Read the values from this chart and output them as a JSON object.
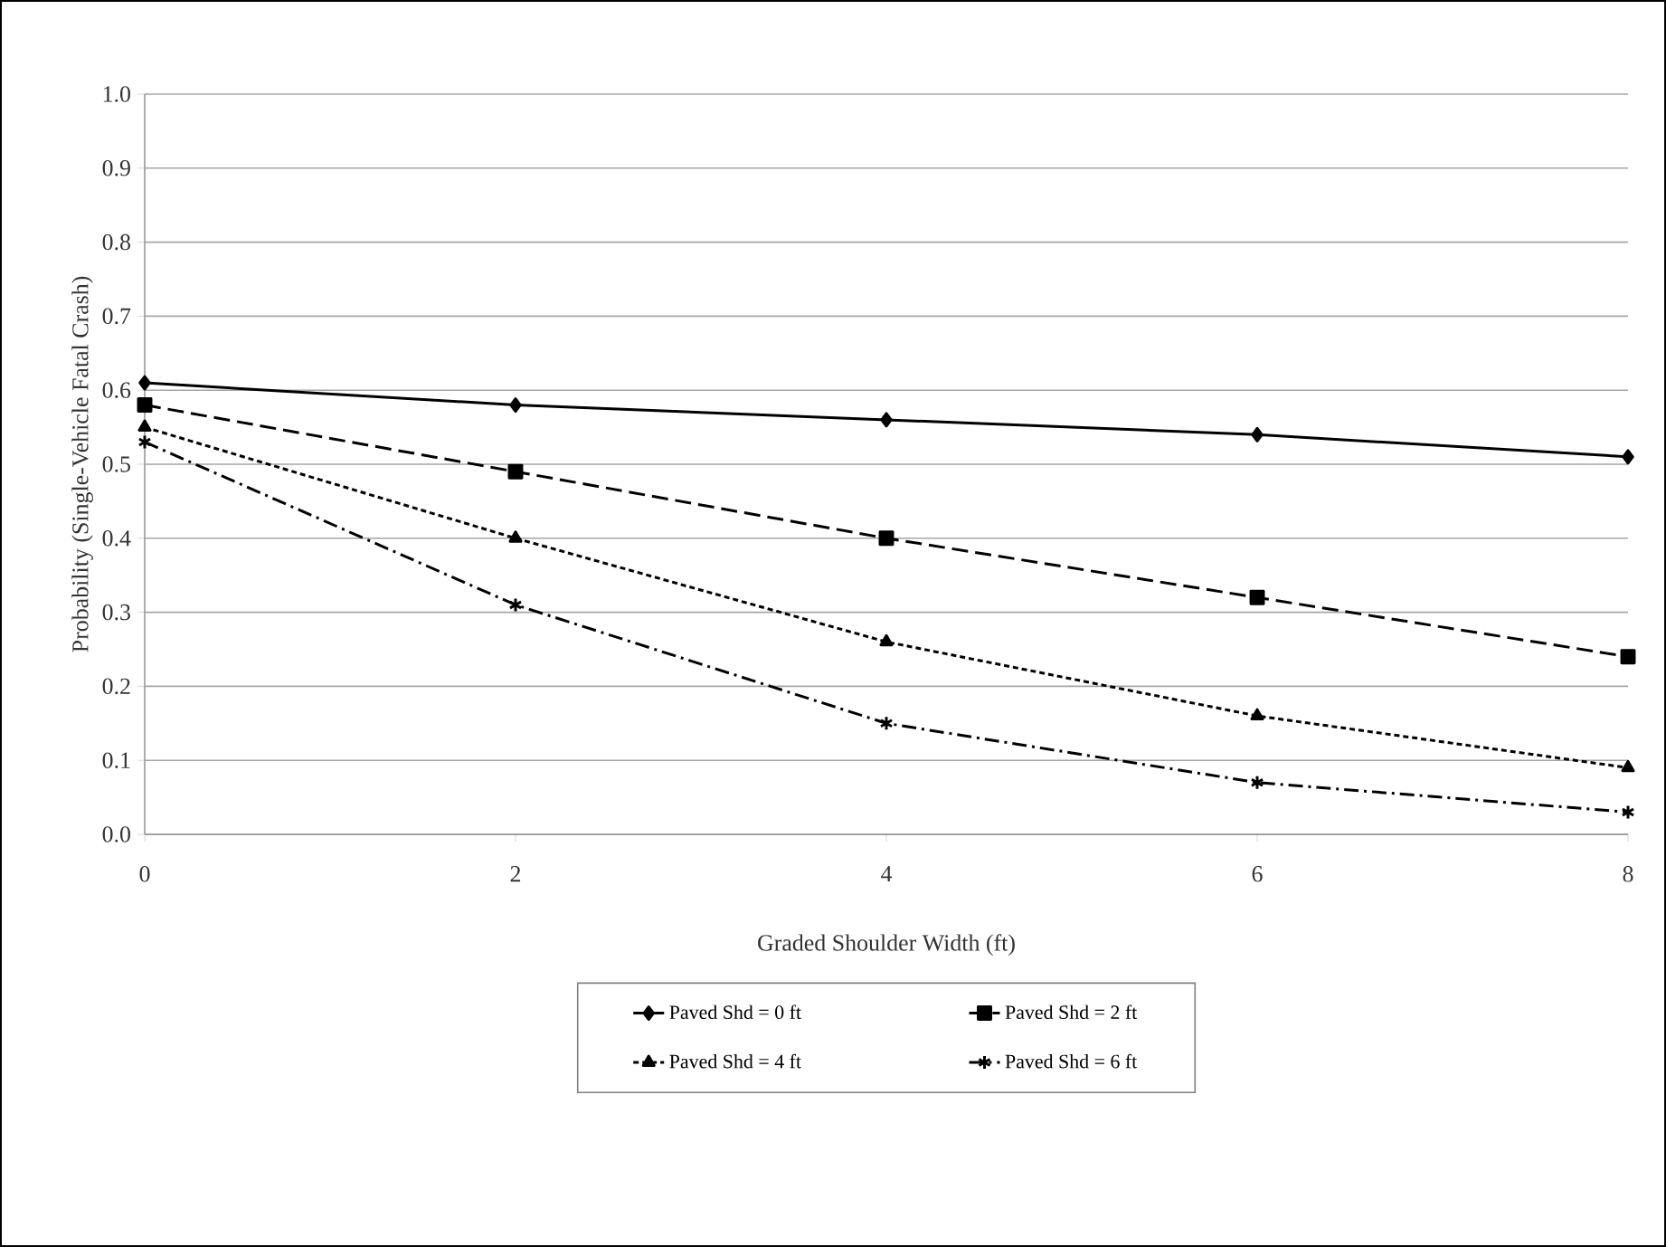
{
  "chart_data": {
    "type": "line",
    "xlabel": "Graded Shoulder Width (ft)",
    "ylabel": "Probability (Single-Vehicle Fatal Crash)",
    "x": [
      0,
      2,
      4,
      6,
      8
    ],
    "xlim": [
      0,
      8
    ],
    "xticks": [
      0,
      2,
      4,
      6,
      8
    ],
    "ylim": [
      0,
      1
    ],
    "yticks": [
      {
        "value": 0,
        "label": "0.0"
      },
      {
        "value": 0.1,
        "label": "0.1"
      },
      {
        "value": 0.2,
        "label": "0.2"
      },
      {
        "value": 0.3,
        "label": "0.3"
      },
      {
        "value": 0.4,
        "label": "0.4"
      },
      {
        "value": 0.5,
        "label": "0.5"
      },
      {
        "value": 0.6,
        "label": "0.6"
      },
      {
        "value": 0.7,
        "label": "0.7"
      },
      {
        "value": 0.8,
        "label": "0.8"
      },
      {
        "value": 0.9,
        "label": "0.9"
      },
      {
        "value": 1,
        "label": "1.0"
      }
    ],
    "grid": "y",
    "legend": "bottom",
    "series": [
      {
        "name": "Paved Shd = 0 ft",
        "color": "#000000",
        "marker": "diamond",
        "line_style": "solid",
        "values": [
          0.61,
          0.58,
          0.56,
          0.54,
          0.51
        ]
      },
      {
        "name": "Paved Shd = 2 ft",
        "color": "#000000",
        "marker": "square",
        "line_style": "dashed",
        "values": [
          0.58,
          0.49,
          0.4,
          0.32,
          0.24
        ]
      },
      {
        "name": "Paved Shd = 4 ft",
        "color": "#000000",
        "marker": "triangle",
        "line_style": "dotted",
        "values": [
          0.55,
          0.4,
          0.26,
          0.16,
          0.09
        ]
      },
      {
        "name": "Paved Shd = 6 ft",
        "color": "#000000",
        "marker": "cross",
        "line_style": "dashdot",
        "values": [
          0.53,
          0.31,
          0.15,
          0.07,
          0.03
        ]
      }
    ]
  }
}
